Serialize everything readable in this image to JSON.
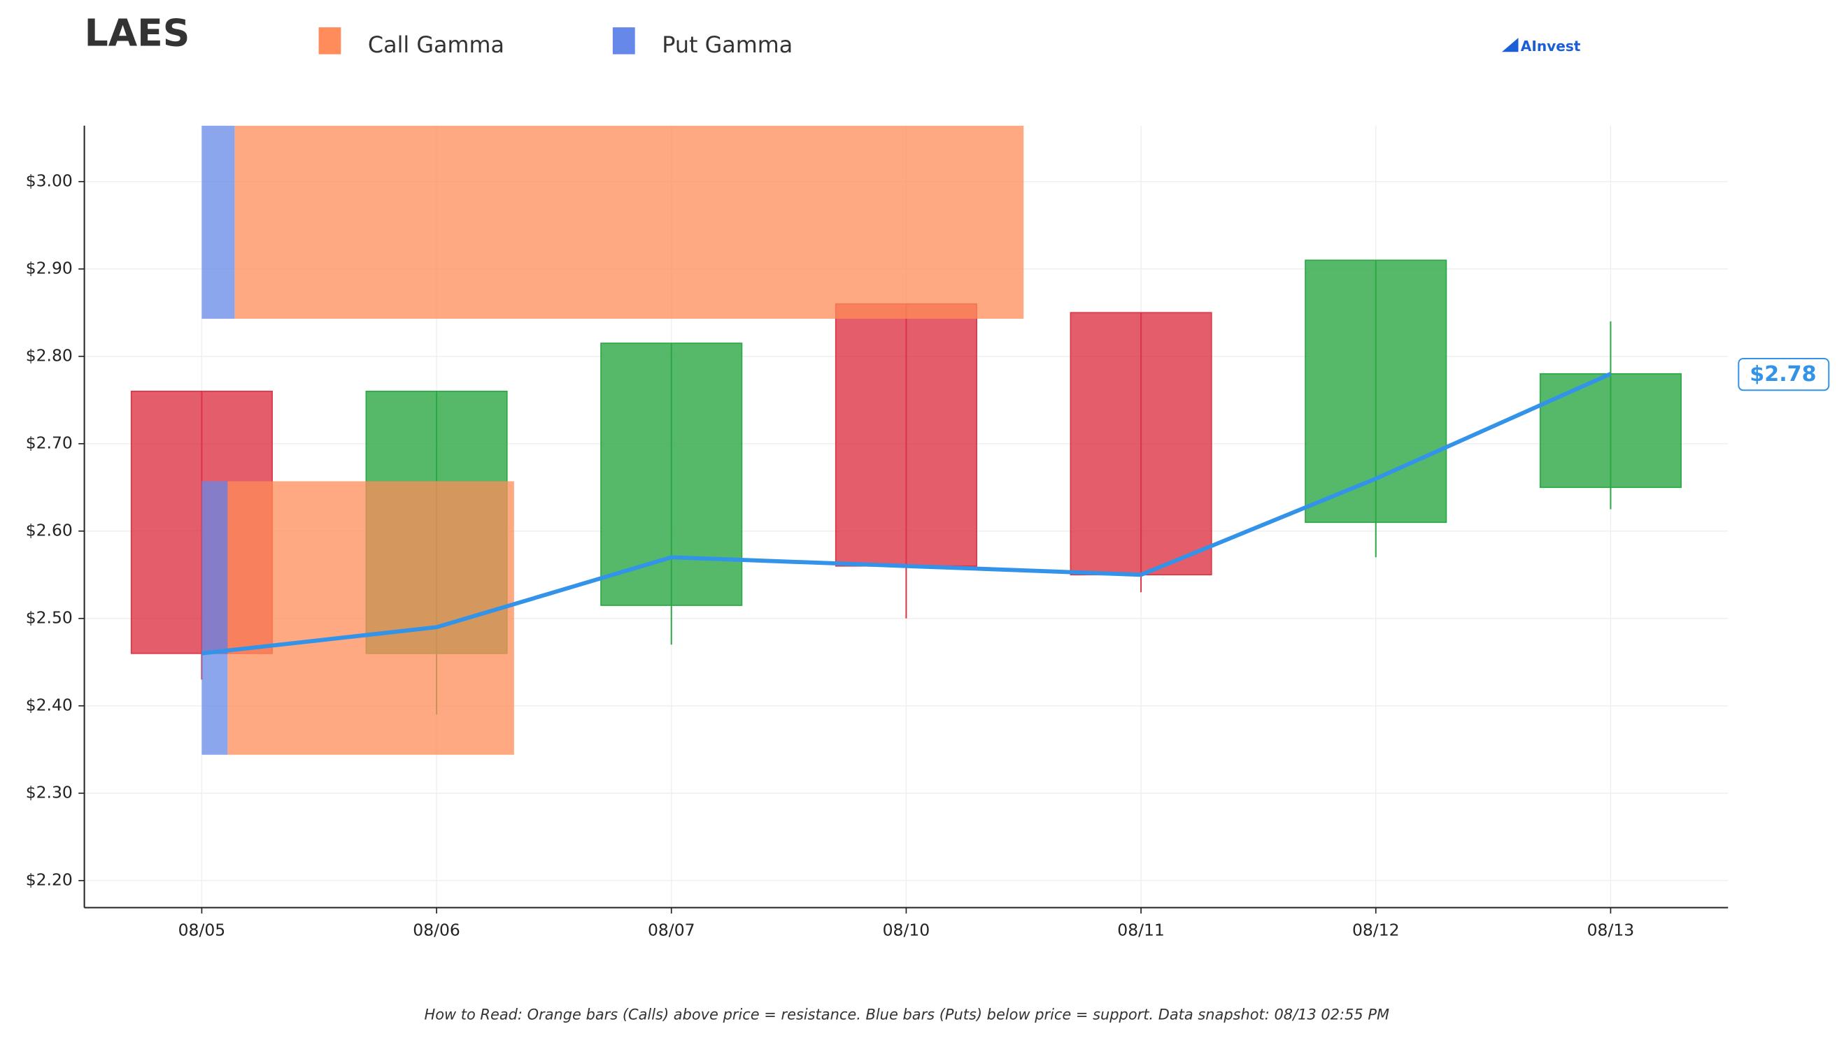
{
  "chart_data": {
    "type": "candlestick",
    "title": "LAES",
    "logo": "AInvest",
    "footnote": "How to Read: Orange bars (Calls) above price = resistance. Blue bars (Puts) below price = support. Data snapshot: 08/13 02:55 PM",
    "categories": [
      "08/05",
      "08/06",
      "08/07",
      "08/10",
      "08/11",
      "08/12",
      "08/13"
    ],
    "open": [
      2.76,
      2.46,
      2.515,
      2.86,
      2.85,
      2.61,
      2.65
    ],
    "close": [
      2.46,
      2.76,
      2.815,
      2.56,
      2.55,
      2.91,
      2.78
    ],
    "high": [
      2.76,
      2.76,
      2.815,
      2.86,
      2.85,
      2.91,
      2.84
    ],
    "low": [
      2.43,
      2.39,
      2.47,
      2.5,
      2.53,
      2.57,
      2.625
    ],
    "up_color": "#2ca844",
    "down_color": "#dc3545",
    "price": [
      2.46,
      2.49,
      2.57,
      2.56,
      2.55,
      2.66,
      2.78
    ],
    "price_color": "#3393e8",
    "last_price": {
      "value": 2.78,
      "label": "$2.78"
    },
    "gamma": [
      {
        "name": "Call Gamma",
        "color": "#ff8c5a",
        "levels": [
          {
            "low": 2.843,
            "high": 3.064,
            "size": 3.36
          },
          {
            "low": 2.344,
            "high": 2.657,
            "size": 1.22
          }
        ]
      },
      {
        "name": "Put Gamma",
        "color": "#6688e8",
        "levels": [
          {
            "low": 2.843,
            "high": 3.064,
            "size": 0.14
          },
          {
            "low": 2.344,
            "high": 2.657,
            "size": 0.11
          }
        ]
      }
    ],
    "ylim": [
      2.169,
      3.064
    ],
    "yticks": [
      {
        "value": 2.2,
        "label": "$2.20"
      },
      {
        "value": 2.3,
        "label": "$2.30"
      },
      {
        "value": 2.4,
        "label": "$2.40"
      },
      {
        "value": 2.5,
        "label": "$2.50"
      },
      {
        "value": 2.6,
        "label": "$2.60"
      },
      {
        "value": 2.7,
        "label": "$2.70"
      },
      {
        "value": 2.8,
        "label": "$2.80"
      },
      {
        "value": 2.9,
        "label": "$2.90"
      },
      {
        "value": 3.0,
        "label": "$3.00"
      }
    ],
    "grid": true
  }
}
